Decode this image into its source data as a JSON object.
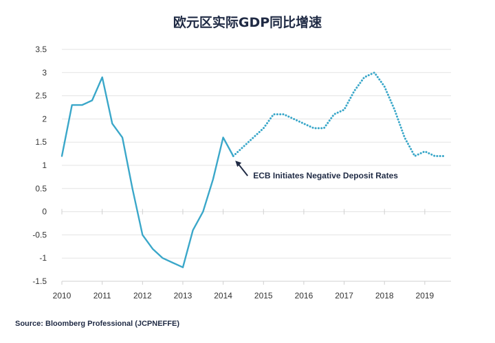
{
  "chart_data": {
    "type": "line",
    "title": "欧元区实际GDP同比增速",
    "xlabel": "",
    "ylabel": "",
    "x_ticks": [
      "2010",
      "2011",
      "2012",
      "2013",
      "2014",
      "2015",
      "2016",
      "2017",
      "2018",
      "2019"
    ],
    "y_ticks": [
      "3.5",
      "3",
      "2.5",
      "2",
      "1.5",
      "1",
      "0.5",
      "0",
      "-0.5",
      "-1",
      "-1.5"
    ],
    "xlim": [
      2010,
      2019.65
    ],
    "ylim": [
      -1.5,
      3.5
    ],
    "grid": true,
    "color": "#3aa7c9",
    "series": [
      {
        "style": "solid",
        "x": [
          2010.0,
          2010.25,
          2010.5,
          2010.75,
          2011.0,
          2011.25,
          2011.5,
          2011.75,
          2012.0,
          2012.25,
          2012.5,
          2012.75,
          2013.0,
          2013.25,
          2013.5,
          2013.75,
          2014.0,
          2014.25
        ],
        "y": [
          1.2,
          2.3,
          2.3,
          2.4,
          2.9,
          1.9,
          1.6,
          0.5,
          -0.5,
          -0.8,
          -1.0,
          -1.1,
          -1.2,
          -0.4,
          0.0,
          0.7,
          1.6,
          1.2
        ]
      },
      {
        "style": "dotted",
        "x": [
          2014.25,
          2014.5,
          2014.75,
          2015.0,
          2015.25,
          2015.5,
          2015.75,
          2016.0,
          2016.25,
          2016.5,
          2016.75,
          2017.0,
          2017.25,
          2017.5,
          2017.75,
          2018.0,
          2018.25,
          2018.5,
          2018.75,
          2019.0,
          2019.25,
          2019.5
        ],
        "y": [
          1.2,
          1.4,
          1.6,
          1.8,
          2.1,
          2.1,
          2.0,
          1.9,
          1.8,
          1.8,
          2.1,
          2.2,
          2.6,
          2.9,
          3.0,
          2.7,
          2.2,
          1.6,
          1.2,
          1.3,
          1.2,
          1.2
        ]
      }
    ],
    "annotations": [
      {
        "text": "ECB Initiates Negative Deposit Rates",
        "x": 2014.3,
        "y": 1.1
      }
    ]
  },
  "source": "Source: Bloomberg Professional (JCPNEFFE)"
}
